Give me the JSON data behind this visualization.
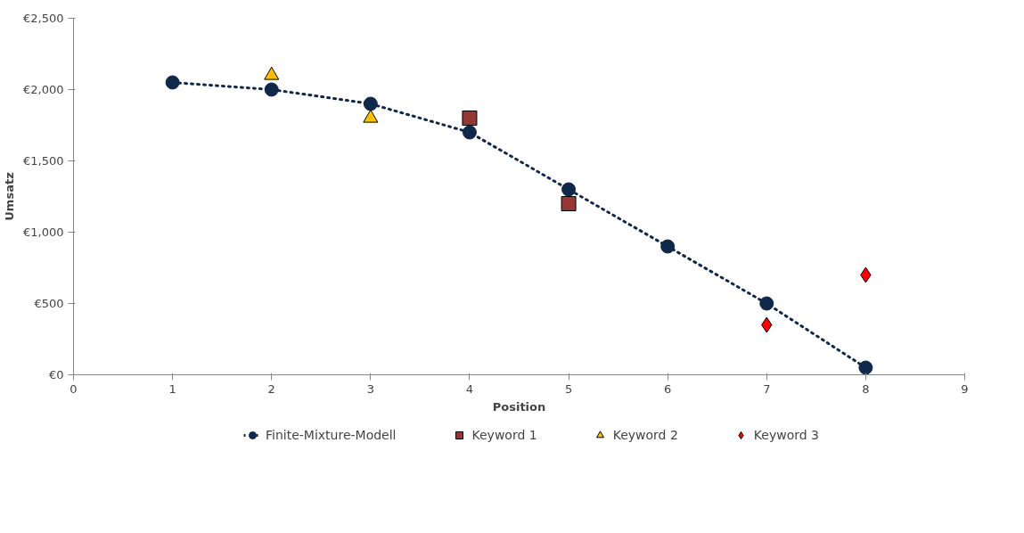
{
  "chart_data": {
    "type": "line",
    "xlabel": "Position",
    "ylabel": "Umsatz",
    "xlim": [
      0,
      9
    ],
    "xticks": [
      0,
      1,
      2,
      3,
      4,
      5,
      6,
      7,
      8,
      9
    ],
    "ylim": [
      0,
      2500
    ],
    "yticks": [
      {
        "value": 0,
        "label": "€0"
      },
      {
        "value": 500,
        "label": "€500"
      },
      {
        "value": 1000,
        "label": "€1,000"
      },
      {
        "value": 1500,
        "label": "€1,500"
      },
      {
        "value": 2000,
        "label": "€2,000"
      },
      {
        "value": 2500,
        "label": "€2,500"
      }
    ],
    "grid": false,
    "legend": "bottom",
    "series": [
      {
        "name": "Finite-Mixture-Modell",
        "marker": "circle",
        "line_style": "dotted",
        "color": "#10284a",
        "x": [
          1,
          2,
          3,
          4,
          5,
          6,
          7,
          8
        ],
        "values": [
          2050,
          2000,
          1900,
          1700,
          1300,
          900,
          500,
          50
        ]
      },
      {
        "name": "Keyword 1",
        "type": "scatter",
        "marker": "square",
        "color": "#953735",
        "x": [
          4,
          5
        ],
        "values": [
          1800,
          1200
        ]
      },
      {
        "name": "Keyword 2",
        "type": "scatter",
        "marker": "triangle",
        "color": "#ffc000",
        "x": [
          2,
          3
        ],
        "values": [
          2100,
          1800
        ]
      },
      {
        "name": "Keyword 3",
        "type": "scatter",
        "marker": "diamond",
        "color": "#ff0000",
        "x": [
          7,
          8
        ],
        "values": [
          350,
          700
        ]
      }
    ]
  }
}
